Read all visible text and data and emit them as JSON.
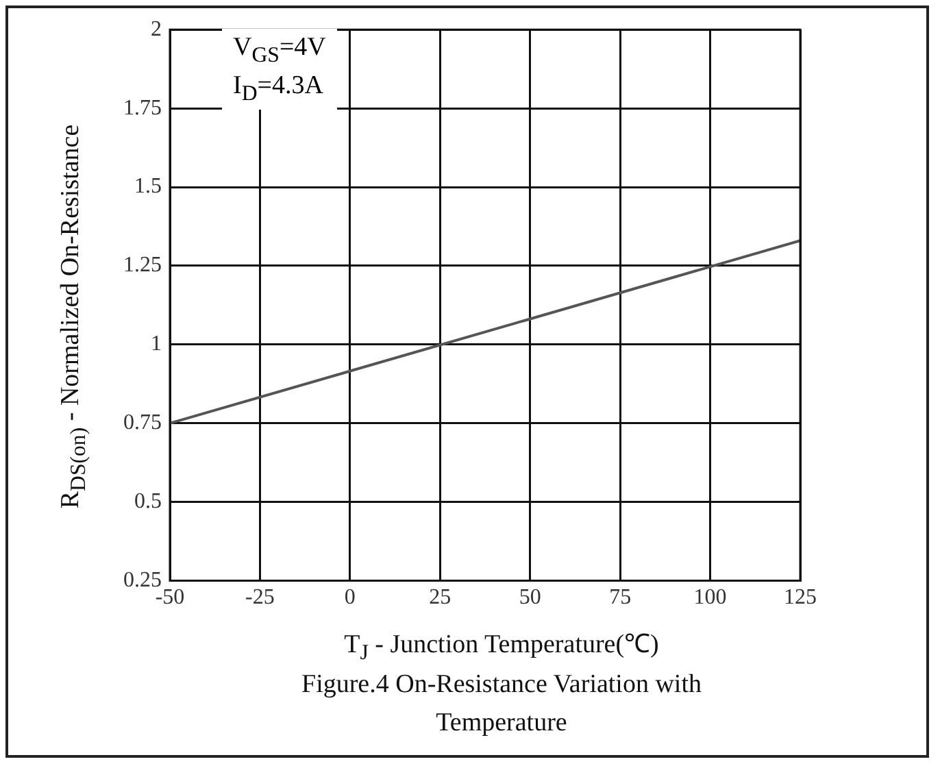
{
  "chart_data": {
    "type": "line",
    "title": "Figure.4 On-Resistance Variation with Temperature",
    "xlabel": "T$_{J}$ - Junction Temperature(℃)",
    "ylabel": "R$_{DS(on)}$ - Normalized On-Resistance",
    "annotations": [
      "V$_{GS}$=4V",
      "I$_{D}$=4.3A"
    ],
    "x": [
      -50,
      125
    ],
    "series": [
      {
        "color": "#555555",
        "values": [
          0.75,
          1.33
        ]
      }
    ],
    "xlim": [
      -50,
      125
    ],
    "xticks": [
      -50,
      -25,
      0,
      25,
      50,
      75,
      100,
      125
    ],
    "ylim": [
      0.25,
      2
    ],
    "yticks": [
      0.25,
      0.5,
      0.75,
      1,
      1.25,
      1.5,
      1.75,
      2
    ],
    "grid": true,
    "legend": false,
    "marker": "none",
    "line_style": "solid"
  }
}
